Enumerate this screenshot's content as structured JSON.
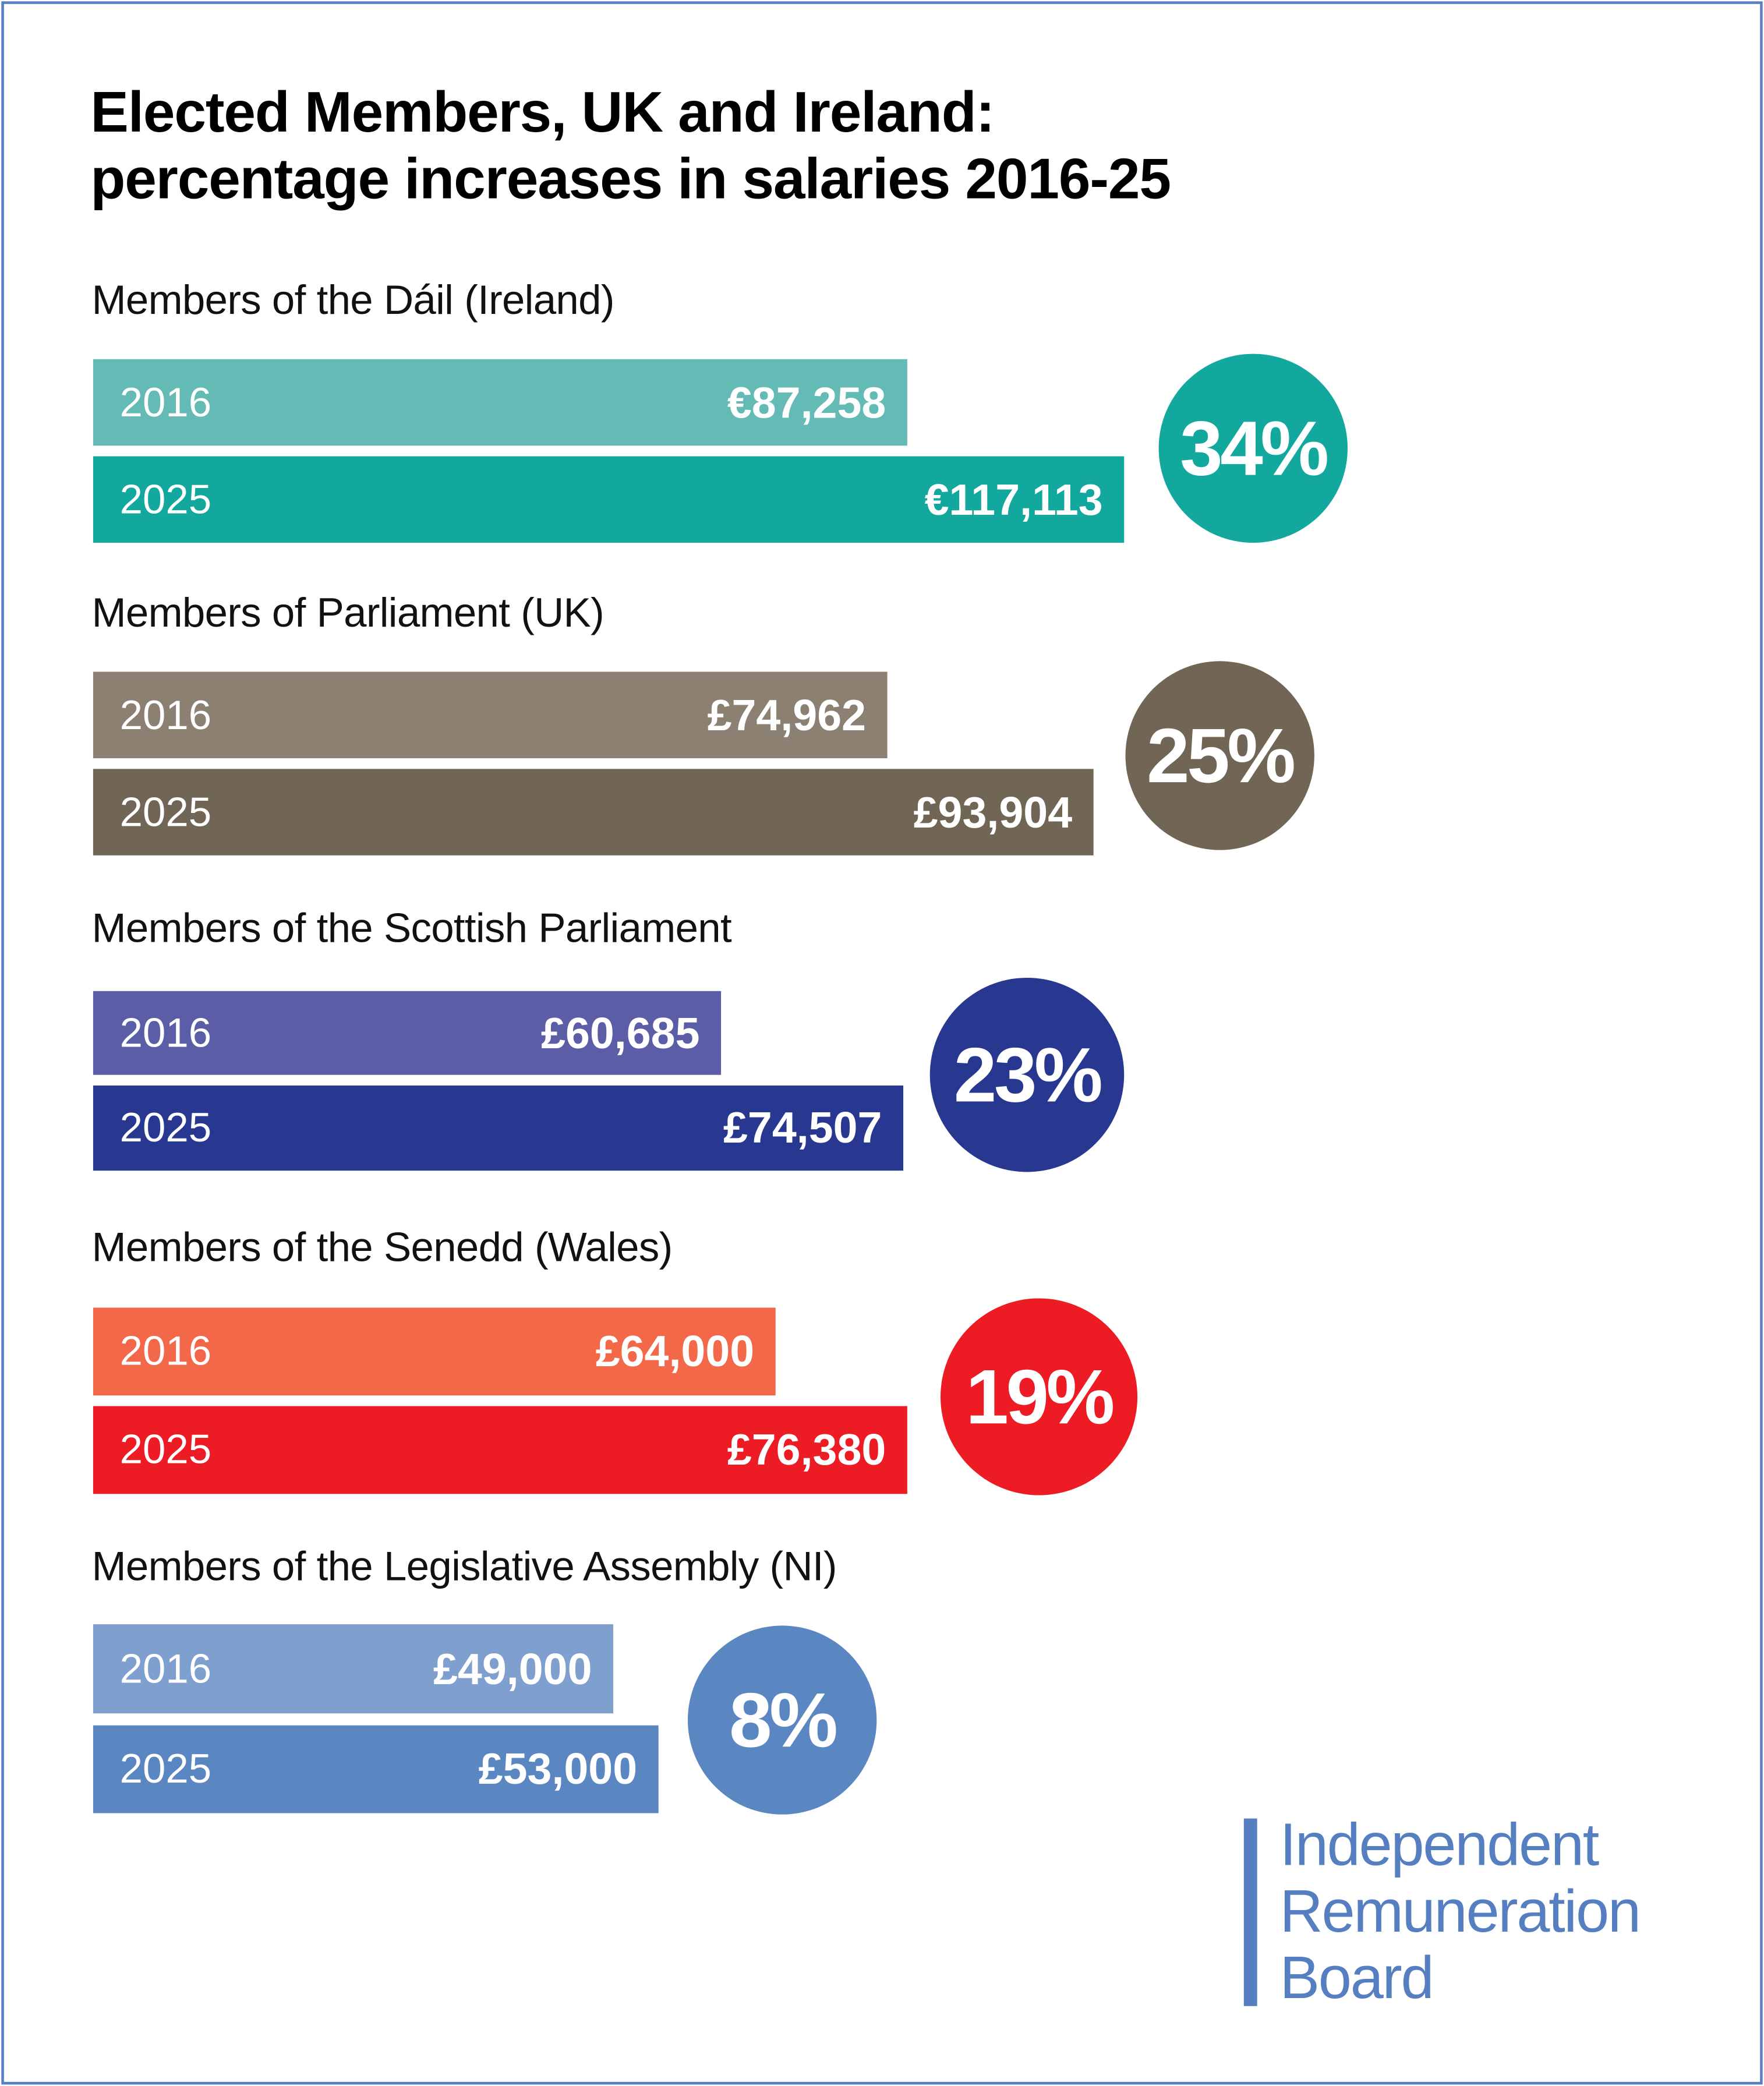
{
  "title_line1": "Elected Members, UK and Ireland:",
  "title_line2": "percentage increases in salaries 2016-25",
  "logo": {
    "line1": "Independent",
    "line2": "Remuneration",
    "line3": "Board",
    "color": "#567fc1"
  },
  "chart_data": {
    "type": "bar",
    "orientation": "horizontal",
    "title": "Elected Members, UK and Ireland: percentage increases in salaries 2016-25",
    "categories": [
      "2016",
      "2025"
    ],
    "groups": [
      {
        "label": "Members of the Dáil (Ireland)",
        "currency": "EUR",
        "values": [
          87258,
          117113
        ],
        "value_labels": [
          "€87,258",
          "€117,113"
        ],
        "increase": "34%",
        "colors": [
          "#64bab4",
          "#13a89e"
        ],
        "circle_color": "#13a89e"
      },
      {
        "label": "Members of Parliament (UK)",
        "currency": "GBP",
        "values": [
          74962,
          93904
        ],
        "value_labels": [
          "£74,962",
          "£93,904"
        ],
        "increase": "25%",
        "colors": [
          "#8c8073",
          "#716655"
        ],
        "circle_color": "#716655"
      },
      {
        "label": "Members of the Scottish Parliament",
        "currency": "GBP",
        "values": [
          60685,
          74507
        ],
        "value_labels": [
          "£60,685",
          "£74,507"
        ],
        "increase": "23%",
        "colors": [
          "#5b5ea6",
          "#283891"
        ],
        "circle_color": "#283891"
      },
      {
        "label": "Members of the Senedd (Wales)",
        "currency": "GBP",
        "values": [
          64000,
          76380
        ],
        "value_labels": [
          "£64,000",
          "£76,380"
        ],
        "increase": "19%",
        "colors": [
          "#f26849",
          "#ed1c24"
        ],
        "circle_color": "#ed1c24"
      },
      {
        "label": "Members of the Legislative Assembly (NI)",
        "currency": "GBP",
        "values": [
          49000,
          53000
        ],
        "value_labels": [
          "£49,000",
          "£53,000"
        ],
        "increase": "8%",
        "colors": [
          "#7f9fce",
          "#5a87c1"
        ],
        "circle_color": "#5a87c1"
      }
    ]
  }
}
